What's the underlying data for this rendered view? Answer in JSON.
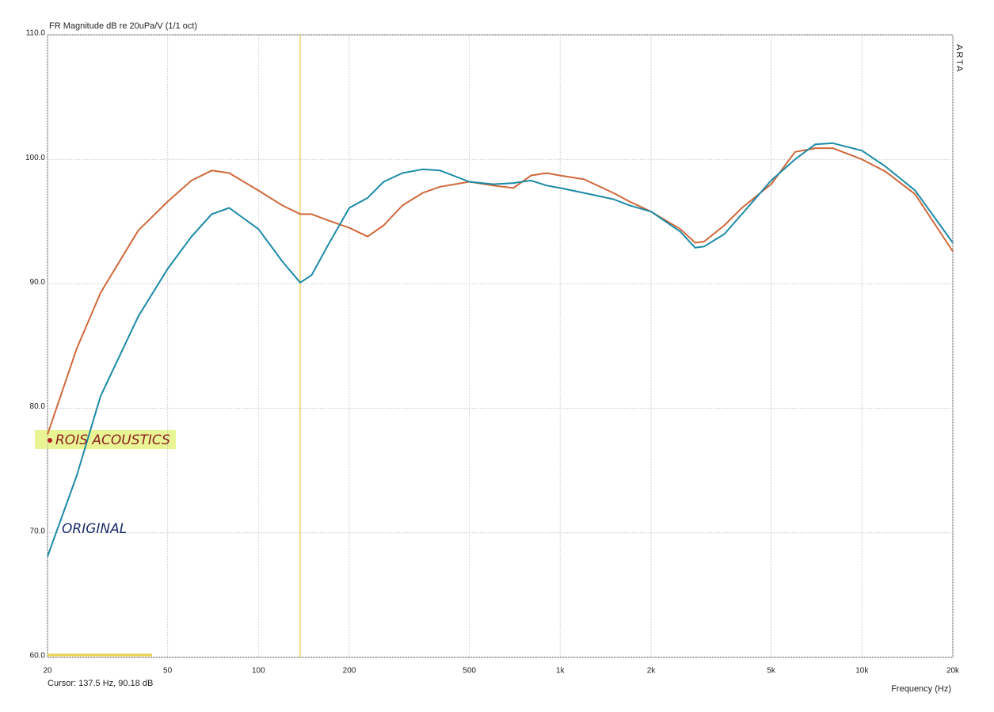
{
  "chart_data": {
    "type": "line",
    "title": "FR Magnitude dB re 20uPa/V (1/1 oct)",
    "brand": "ARTA",
    "x_label": "Frequency (Hz)",
    "xscale": "log",
    "grid": true,
    "cursor": {
      "x": 137.5,
      "label": "Cursor: 137.5 Hz, 90.18 dB"
    },
    "xlim": [
      20,
      20000
    ],
    "ylim": [
      60,
      110
    ],
    "xticks": [
      20,
      50,
      100,
      200,
      500,
      {
        "value": 1000,
        "label": "1k"
      },
      {
        "value": 2000,
        "label": "2k"
      },
      {
        "value": 5000,
        "label": "5k"
      },
      {
        "value": 10000,
        "label": "10k"
      },
      {
        "value": 20000,
        "label": "20k"
      }
    ],
    "yticks": [
      {
        "value": 60,
        "label": "60.0"
      },
      {
        "value": 70,
        "label": "70.0"
      },
      {
        "value": 80,
        "label": "80.0"
      },
      {
        "value": 90,
        "label": "90.0"
      },
      {
        "value": 100,
        "label": "100.0"
      },
      {
        "value": 110,
        "label": "110.0"
      }
    ],
    "x": [
      20,
      25,
      30,
      40,
      50,
      60,
      70,
      80,
      100,
      120,
      137.5,
      150,
      170,
      200,
      230,
      260,
      300,
      350,
      400,
      500,
      600,
      700,
      800,
      900,
      1000,
      1200,
      1500,
      1700,
      2000,
      2500,
      2800,
      3000,
      3500,
      4000,
      5000,
      6000,
      7000,
      8000,
      10000,
      12000,
      15000,
      20000
    ],
    "series": [
      {
        "name": "ROIS ACOUSTICS",
        "color": "#d0683a",
        "values": [
          77.9,
          84.8,
          89.3,
          94.3,
          96.6,
          98.3,
          99.1,
          98.9,
          97.5,
          96.3,
          95.6,
          95.6,
          95.1,
          94.5,
          93.8,
          94.7,
          96.3,
          97.3,
          97.8,
          98.2,
          97.9,
          97.7,
          98.7,
          98.9,
          98.7,
          98.4,
          97.3,
          96.6,
          95.8,
          94.4,
          93.3,
          93.4,
          94.7,
          96.1,
          98.0,
          100.6,
          100.9,
          100.9,
          100.0,
          99.0,
          97.2,
          92.6
        ]
      },
      {
        "name": "ORIGINAL",
        "color": "#1b8aa6",
        "values": [
          68.1,
          74.6,
          81.0,
          87.4,
          91.2,
          93.8,
          95.6,
          96.1,
          94.4,
          91.8,
          90.1,
          90.7,
          93.1,
          96.1,
          96.9,
          98.2,
          98.9,
          99.2,
          99.1,
          98.2,
          98.0,
          98.1,
          98.3,
          97.9,
          97.7,
          97.3,
          96.8,
          96.3,
          95.8,
          94.2,
          92.9,
          93.0,
          94.0,
          95.6,
          98.3,
          100.0,
          101.2,
          101.3,
          100.7,
          99.4,
          97.5,
          93.3
        ]
      }
    ]
  }
}
